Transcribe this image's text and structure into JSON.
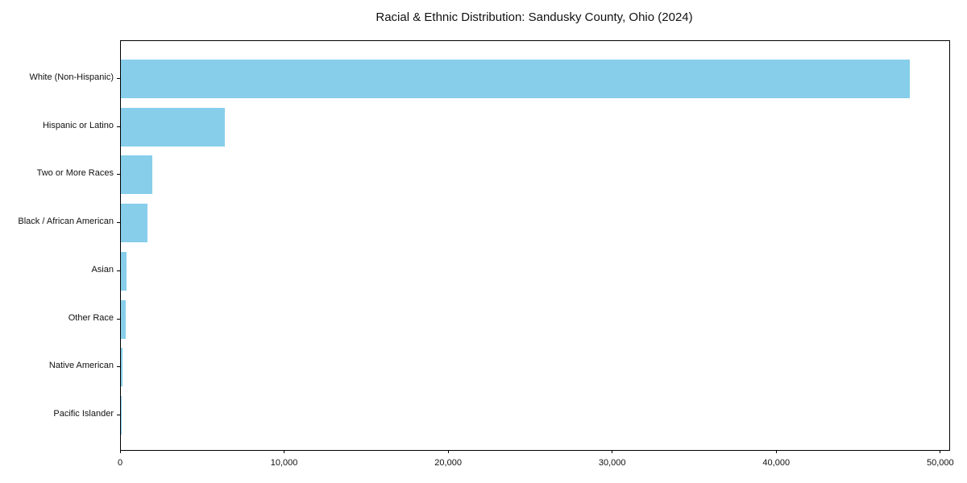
{
  "chart_data": {
    "type": "bar",
    "orientation": "horizontal",
    "title": "Racial & Ethnic Distribution: Sandusky County, Ohio (2024)",
    "categories": [
      "White (Non-Hispanic)",
      "Hispanic or Latino",
      "Two or More Races",
      "Black / African American",
      "Asian",
      "Other Race",
      "Native American",
      "Pacific Islander"
    ],
    "values": [
      48100,
      6350,
      1900,
      1620,
      330,
      280,
      100,
      20
    ],
    "bar_color": "#87CEEB",
    "xlabel": "",
    "ylabel": "",
    "xlim": [
      0,
      50500
    ],
    "x_ticks": [
      {
        "value": 0,
        "label": "0"
      },
      {
        "value": 10000,
        "label": "10,000"
      },
      {
        "value": 20000,
        "label": "20,000"
      },
      {
        "value": 30000,
        "label": "30,000"
      },
      {
        "value": 40000,
        "label": "40,000"
      },
      {
        "value": 50000,
        "label": "50,000"
      }
    ],
    "grid": false,
    "legend": null
  }
}
